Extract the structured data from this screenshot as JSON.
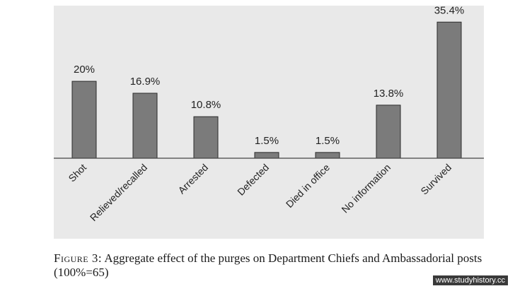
{
  "chart_data": {
    "type": "bar",
    "categories": [
      "Shot",
      "Relieved/recalled",
      "Arrested",
      "Defected",
      "Died in office",
      "No information",
      "Survived"
    ],
    "values": [
      20,
      16.9,
      10.8,
      1.5,
      1.5,
      13.8,
      35.4
    ],
    "data_labels": [
      "20%",
      "16.9%",
      "10.8%",
      "1.5%",
      "1.5%",
      "13.8%",
      "35.4%"
    ],
    "title": "",
    "xlabel": "",
    "ylabel": "",
    "ylim": [
      0,
      36
    ],
    "grid": false,
    "legend": "none",
    "bar_color": "#7b7b7b"
  },
  "caption": {
    "label": "Figure 3:",
    "text": "Aggregate effect of the purges on Department Chiefs and Ambassadorial posts (100%=65)"
  },
  "watermark": "www.studyhistory.cc"
}
